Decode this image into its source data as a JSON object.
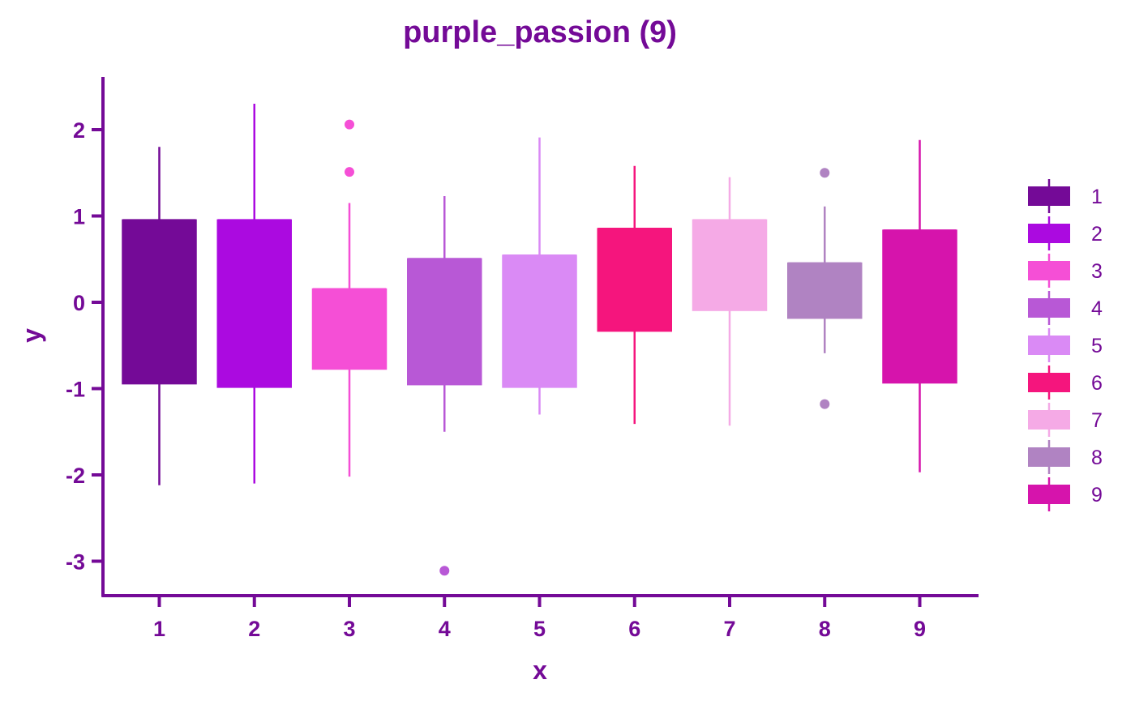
{
  "chart_data": {
    "type": "boxplot",
    "title": "purple_passion (9)",
    "xlabel": "x",
    "ylabel": "y",
    "ylim": [
      -3.35,
      2.6
    ],
    "yticks": [
      -3,
      -2,
      -1,
      0,
      1,
      2
    ],
    "categories": [
      "1",
      "2",
      "3",
      "4",
      "5",
      "6",
      "7",
      "8",
      "9"
    ],
    "colors": [
      "#740a97",
      "#ab0ae0",
      "#f54fd6",
      "#b858d6",
      "#da8af5",
      "#f5157d",
      "#f5aae6",
      "#b083c2",
      "#d614ac"
    ],
    "text_color": "#740a97",
    "legend_position": "right",
    "grid": false,
    "boxes": [
      {
        "category": "1",
        "whisker_low": -2.12,
        "q1": -0.94,
        "median": 0.95,
        "q3": 0.95,
        "whisker_high": 1.8,
        "outliers": []
      },
      {
        "category": "2",
        "whisker_low": -2.1,
        "q1": -0.98,
        "median": 0.95,
        "q3": 0.95,
        "whisker_high": 2.3,
        "outliers": []
      },
      {
        "category": "3",
        "whisker_low": -2.02,
        "q1": -0.77,
        "median": 0.15,
        "q3": 0.15,
        "whisker_high": 1.15,
        "outliers": [
          2.06,
          1.51
        ]
      },
      {
        "category": "4",
        "whisker_low": -1.5,
        "q1": -0.95,
        "median": 0.5,
        "q3": 0.5,
        "whisker_high": 1.23,
        "outliers": [
          -3.11
        ]
      },
      {
        "category": "5",
        "whisker_low": -1.3,
        "q1": -0.98,
        "median": 0.54,
        "q3": 0.54,
        "whisker_high": 1.91,
        "outliers": []
      },
      {
        "category": "6",
        "whisker_low": -1.41,
        "q1": -0.33,
        "median": 0.85,
        "q3": 0.85,
        "whisker_high": 1.58,
        "outliers": []
      },
      {
        "category": "7",
        "whisker_low": -1.43,
        "q1": -0.09,
        "median": 0.95,
        "q3": 0.95,
        "whisker_high": 1.45,
        "outliers": []
      },
      {
        "category": "8",
        "whisker_low": -0.59,
        "q1": -0.18,
        "median": 0.45,
        "q3": 0.45,
        "whisker_high": 1.11,
        "outliers": [
          1.5,
          -1.18
        ]
      },
      {
        "category": "9",
        "whisker_low": -1.97,
        "q1": -0.93,
        "median": 0.83,
        "q3": 0.83,
        "whisker_high": 1.88,
        "outliers": []
      }
    ],
    "legend": {
      "entries": [
        "1",
        "2",
        "3",
        "4",
        "5",
        "6",
        "7",
        "8",
        "9"
      ]
    }
  }
}
